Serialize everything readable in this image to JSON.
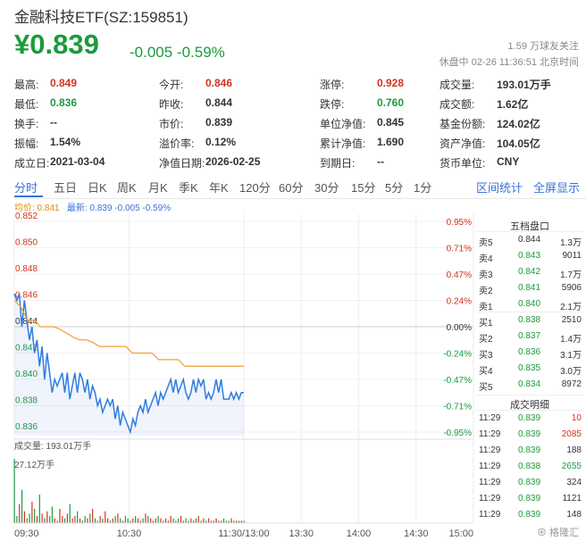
{
  "header": {
    "title": "金融科技ETF(SZ:159851)",
    "price": "¥0.839",
    "change": "-0.005 -0.59%",
    "watchers": "1.59 万球友关注",
    "status": "休盘中 02-26 11:36:51 北京时间"
  },
  "quote": [
    {
      "label": "最高:",
      "value": "0.849",
      "color": "red"
    },
    {
      "label": "今开:",
      "value": "0.846",
      "color": "red"
    },
    {
      "label": "涨停:",
      "value": "0.928",
      "color": "red"
    },
    {
      "label": "成交量:",
      "value": "193.01万手",
      "color": "plain"
    },
    {
      "label": "最低:",
      "value": "0.836",
      "color": "grn"
    },
    {
      "label": "昨收:",
      "value": "0.844",
      "color": "plain"
    },
    {
      "label": "跌停:",
      "value": "0.760",
      "color": "grn"
    },
    {
      "label": "成交额:",
      "value": "1.62亿",
      "color": "plain"
    },
    {
      "label": "换手:",
      "value": "--",
      "color": "plain"
    },
    {
      "label": "市价:",
      "value": "0.839",
      "color": "plain"
    },
    {
      "label": "单位净值:",
      "value": "0.845",
      "color": "plain"
    },
    {
      "label": "基金份额:",
      "value": "124.02亿",
      "color": "plain"
    },
    {
      "label": "振幅:",
      "value": "1.54%",
      "color": "plain"
    },
    {
      "label": "溢价率:",
      "value": "0.12%",
      "color": "plain"
    },
    {
      "label": "累计净值:",
      "value": "1.690",
      "color": "plain"
    },
    {
      "label": "资产净值:",
      "value": "104.05亿",
      "color": "plain"
    },
    {
      "label": "成立日:",
      "value": "2021-03-04",
      "color": "plain"
    },
    {
      "label": "净值日期:",
      "value": "2026-02-25",
      "color": "plain"
    },
    {
      "label": "到期日:",
      "value": "--",
      "color": "plain"
    },
    {
      "label": "货币单位:",
      "value": "CNY",
      "color": "plain"
    }
  ],
  "tabs": [
    "分时",
    "五日",
    "日K",
    "周K",
    "月K",
    "季K",
    "年K",
    "120分",
    "60分",
    "30分",
    "15分",
    "5分",
    "1分"
  ],
  "tabs_right": [
    "区间统计",
    "全屏显示"
  ],
  "legend": {
    "avg": "均价: 0.841",
    "latest": "最新: 0.839 -0.005 -0.59%"
  },
  "chart_data": {
    "type": "line",
    "price_ticks": [
      "0.852",
      "0.850",
      "0.848",
      "0.846",
      "0.844",
      "0.842",
      "0.840",
      "0.838",
      "0.836"
    ],
    "price_tick_values": [
      0.852,
      0.85,
      0.848,
      0.846,
      0.844,
      0.842,
      0.84,
      0.838,
      0.836
    ],
    "pct_ticks": [
      "0.95%",
      "0.71%",
      "0.47%",
      "0.24%",
      "0.00%",
      "-0.24%",
      "-0.47%",
      "-0.71%",
      "-0.95%"
    ],
    "ylim": [
      0.836,
      0.852
    ],
    "prev_close": 0.844,
    "time_labels": [
      "09:30",
      "10:30",
      "11:30/13:00",
      "13:30",
      "14:00",
      "14:30",
      "15:00"
    ],
    "time_label_minutes": [
      0,
      60,
      120,
      150,
      180,
      210,
      240
    ],
    "x_minutes_total": 240,
    "price_series": [
      0.8465,
      0.846,
      0.8465,
      0.844,
      0.846,
      0.8445,
      0.843,
      0.844,
      0.842,
      0.843,
      0.841,
      0.8425,
      0.84,
      0.842,
      0.8405,
      0.839,
      0.84,
      0.8395,
      0.84,
      0.8405,
      0.839,
      0.8405,
      0.8385,
      0.8395,
      0.8405,
      0.839,
      0.8405,
      0.84,
      0.839,
      0.84,
      0.8385,
      0.8395,
      0.839,
      0.838,
      0.8385,
      0.8375,
      0.838,
      0.8385,
      0.838,
      0.8385,
      0.837,
      0.838,
      0.8365,
      0.8375,
      0.837,
      0.8365,
      0.836,
      0.837,
      0.8365,
      0.8375,
      0.838,
      0.8375,
      0.8385,
      0.8375,
      0.838,
      0.8385,
      0.839,
      0.838,
      0.839,
      0.8385,
      0.839,
      0.8395,
      0.84,
      0.839,
      0.84,
      0.839,
      0.8395,
      0.84,
      0.839,
      0.8385,
      0.839,
      0.84,
      0.839,
      0.84,
      0.8395,
      0.84,
      0.8385,
      0.839,
      0.8385,
      0.839,
      0.84,
      0.839,
      0.84,
      0.8385,
      0.8385,
      0.8385,
      0.839,
      0.8385,
      0.839,
      0.8385,
      0.839,
      0.839
    ],
    "avg_series": [
      0.846,
      0.8455,
      0.8445,
      0.8445,
      0.844,
      0.844,
      0.844,
      0.8438,
      0.8435,
      0.8432,
      0.843,
      0.843,
      0.8428,
      0.8425,
      0.8425,
      0.8425,
      0.8425,
      0.8425,
      0.842,
      0.842,
      0.842,
      0.842,
      0.8415,
      0.8415,
      0.8415,
      0.8415,
      0.841,
      0.841,
      0.841,
      0.841,
      0.841,
      0.841,
      0.841,
      0.841,
      0.841,
      0.841
    ],
    "volume_label": "成交量: 193.01万手",
    "volume_max_label": "27.12万手",
    "volume_series": [
      27.12,
      3,
      8,
      14,
      5,
      2,
      4,
      9,
      6,
      3,
      12,
      4,
      2,
      5,
      3,
      7,
      2,
      1,
      6,
      3,
      2,
      4,
      8,
      2,
      3,
      5,
      2,
      1,
      3,
      2,
      4,
      6,
      2,
      1,
      3,
      2,
      5,
      2,
      1,
      2,
      3,
      4,
      2,
      1,
      3,
      2,
      1,
      2,
      3,
      2,
      1,
      2,
      4,
      3,
      2,
      1,
      2,
      3,
      2,
      1,
      2,
      1,
      3,
      2,
      1,
      2,
      3,
      1,
      2,
      1,
      2,
      1,
      2,
      3,
      1,
      2,
      1,
      2,
      1,
      1,
      2,
      1,
      1,
      2,
      1,
      1,
      2,
      1,
      1,
      1,
      1,
      1
    ]
  },
  "orderbook": {
    "title": "五档盘口",
    "asks": [
      {
        "label": "卖5",
        "price": "0.844",
        "vol": "1.3万"
      },
      {
        "label": "卖4",
        "price": "0.843",
        "vol": "9011"
      },
      {
        "label": "卖3",
        "price": "0.842",
        "vol": "1.7万"
      },
      {
        "label": "卖2",
        "price": "0.841",
        "vol": "5906"
      },
      {
        "label": "卖1",
        "price": "0.840",
        "vol": "2.1万"
      }
    ],
    "bids": [
      {
        "label": "买1",
        "price": "0.838",
        "vol": "2510"
      },
      {
        "label": "买2",
        "price": "0.837",
        "vol": "1.4万"
      },
      {
        "label": "买3",
        "price": "0.836",
        "vol": "3.1万"
      },
      {
        "label": "买4",
        "price": "0.835",
        "vol": "3.0万"
      },
      {
        "label": "买5",
        "price": "0.834",
        "vol": "8972"
      }
    ],
    "trades_title": "成交明细",
    "trades": [
      {
        "time": "11:29",
        "price": "0.839",
        "vol": "10",
        "dir": "red"
      },
      {
        "time": "11:29",
        "price": "0.839",
        "vol": "2085",
        "dir": "red"
      },
      {
        "time": "11:29",
        "price": "0.839",
        "vol": "188",
        "dir": "plain"
      },
      {
        "time": "11:29",
        "price": "0.838",
        "vol": "2655",
        "dir": "grn"
      },
      {
        "time": "11:29",
        "price": "0.839",
        "vol": "324",
        "dir": "plain"
      },
      {
        "time": "11:29",
        "price": "0.839",
        "vol": "1121",
        "dir": "plain"
      },
      {
        "time": "11:29",
        "price": "0.839",
        "vol": "148",
        "dir": "plain"
      }
    ]
  },
  "watermark": "格隆汇"
}
